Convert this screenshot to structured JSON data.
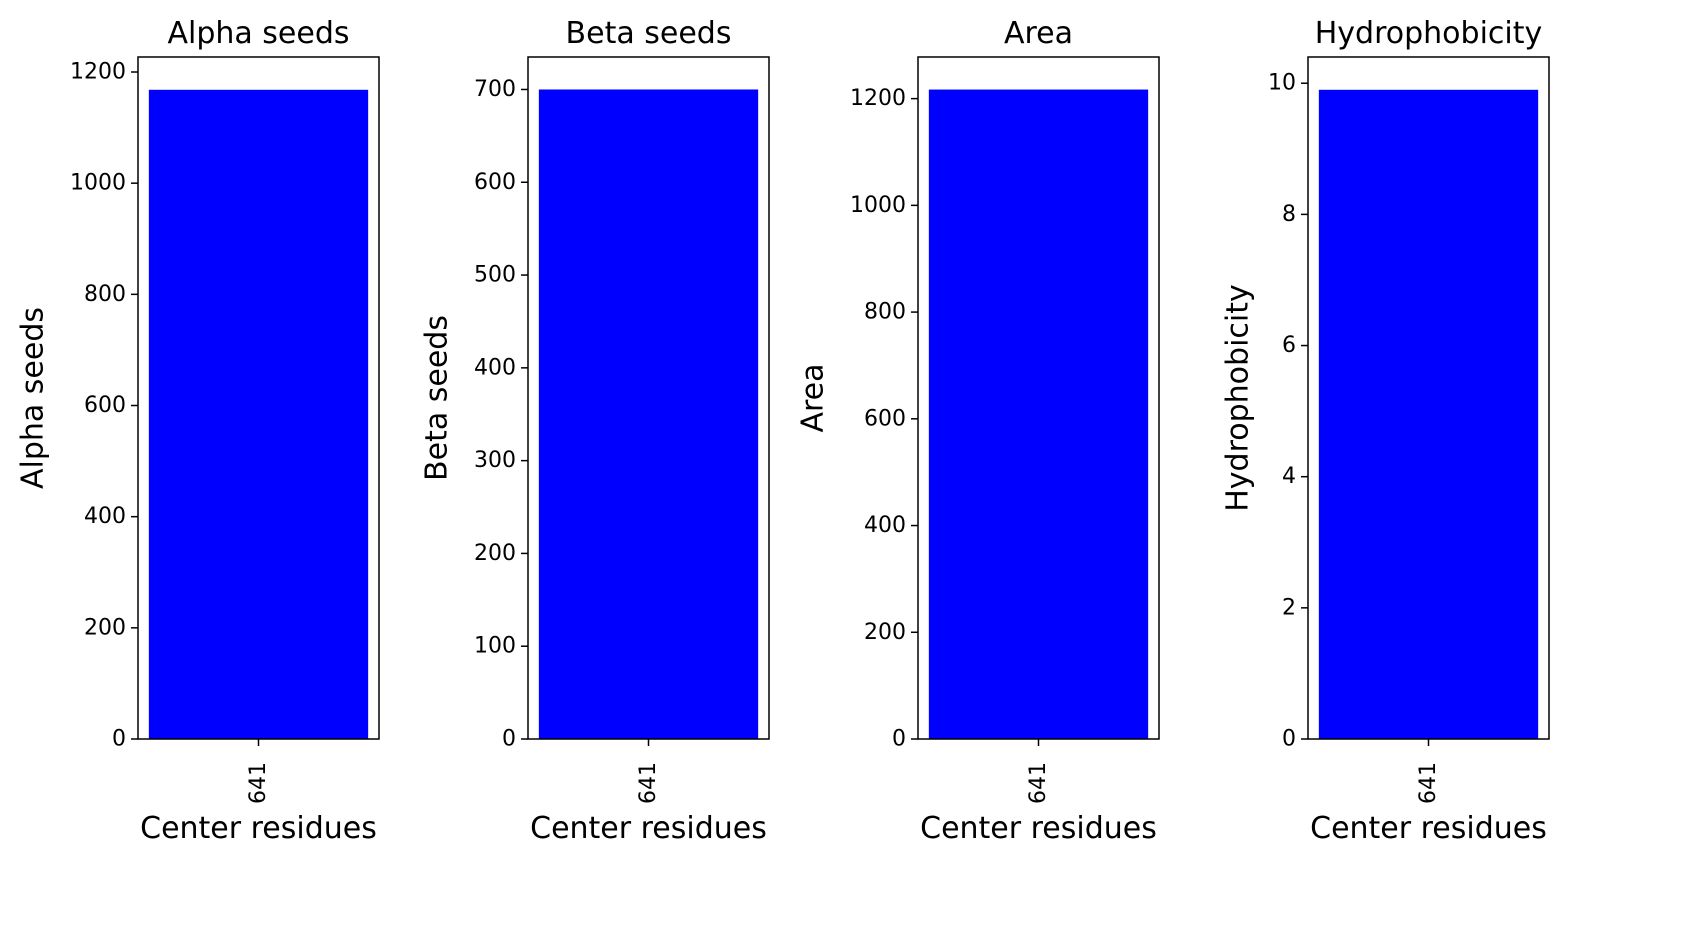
{
  "figure": {
    "background": "#ffffff",
    "bar_color": "#0000ff"
  },
  "chart_data": [
    {
      "type": "bar",
      "title": "Alpha seeds",
      "xlabel": "Center residues",
      "ylabel": "Alpha seeds",
      "categories": [
        "641"
      ],
      "values": [
        1168
      ],
      "ylim": [
        0,
        1227
      ],
      "yticks": [
        0,
        200,
        400,
        600,
        800,
        1000,
        1200
      ],
      "grid": false,
      "legend": "none"
    },
    {
      "type": "bar",
      "title": "Beta seeds",
      "xlabel": "Center residues",
      "ylabel": "Beta seeds",
      "categories": [
        "641"
      ],
      "values": [
        700
      ],
      "ylim": [
        0,
        735
      ],
      "yticks": [
        0,
        100,
        200,
        300,
        400,
        500,
        600,
        700
      ],
      "grid": false,
      "legend": "none"
    },
    {
      "type": "bar",
      "title": "Area",
      "xlabel": "Center residues",
      "ylabel": "Area",
      "categories": [
        "641"
      ],
      "values": [
        1217
      ],
      "ylim": [
        0,
        1278
      ],
      "yticks": [
        0,
        200,
        400,
        600,
        800,
        1000,
        1200
      ],
      "grid": false,
      "legend": "none"
    },
    {
      "type": "bar",
      "title": "Hydrophobicity",
      "xlabel": "Center residues",
      "ylabel": "Hydrophobicity",
      "categories": [
        "641"
      ],
      "values": [
        9.9
      ],
      "ylim": [
        0,
        10.4
      ],
      "yticks": [
        0,
        2,
        4,
        6,
        8,
        10
      ],
      "grid": false,
      "legend": "none"
    }
  ]
}
